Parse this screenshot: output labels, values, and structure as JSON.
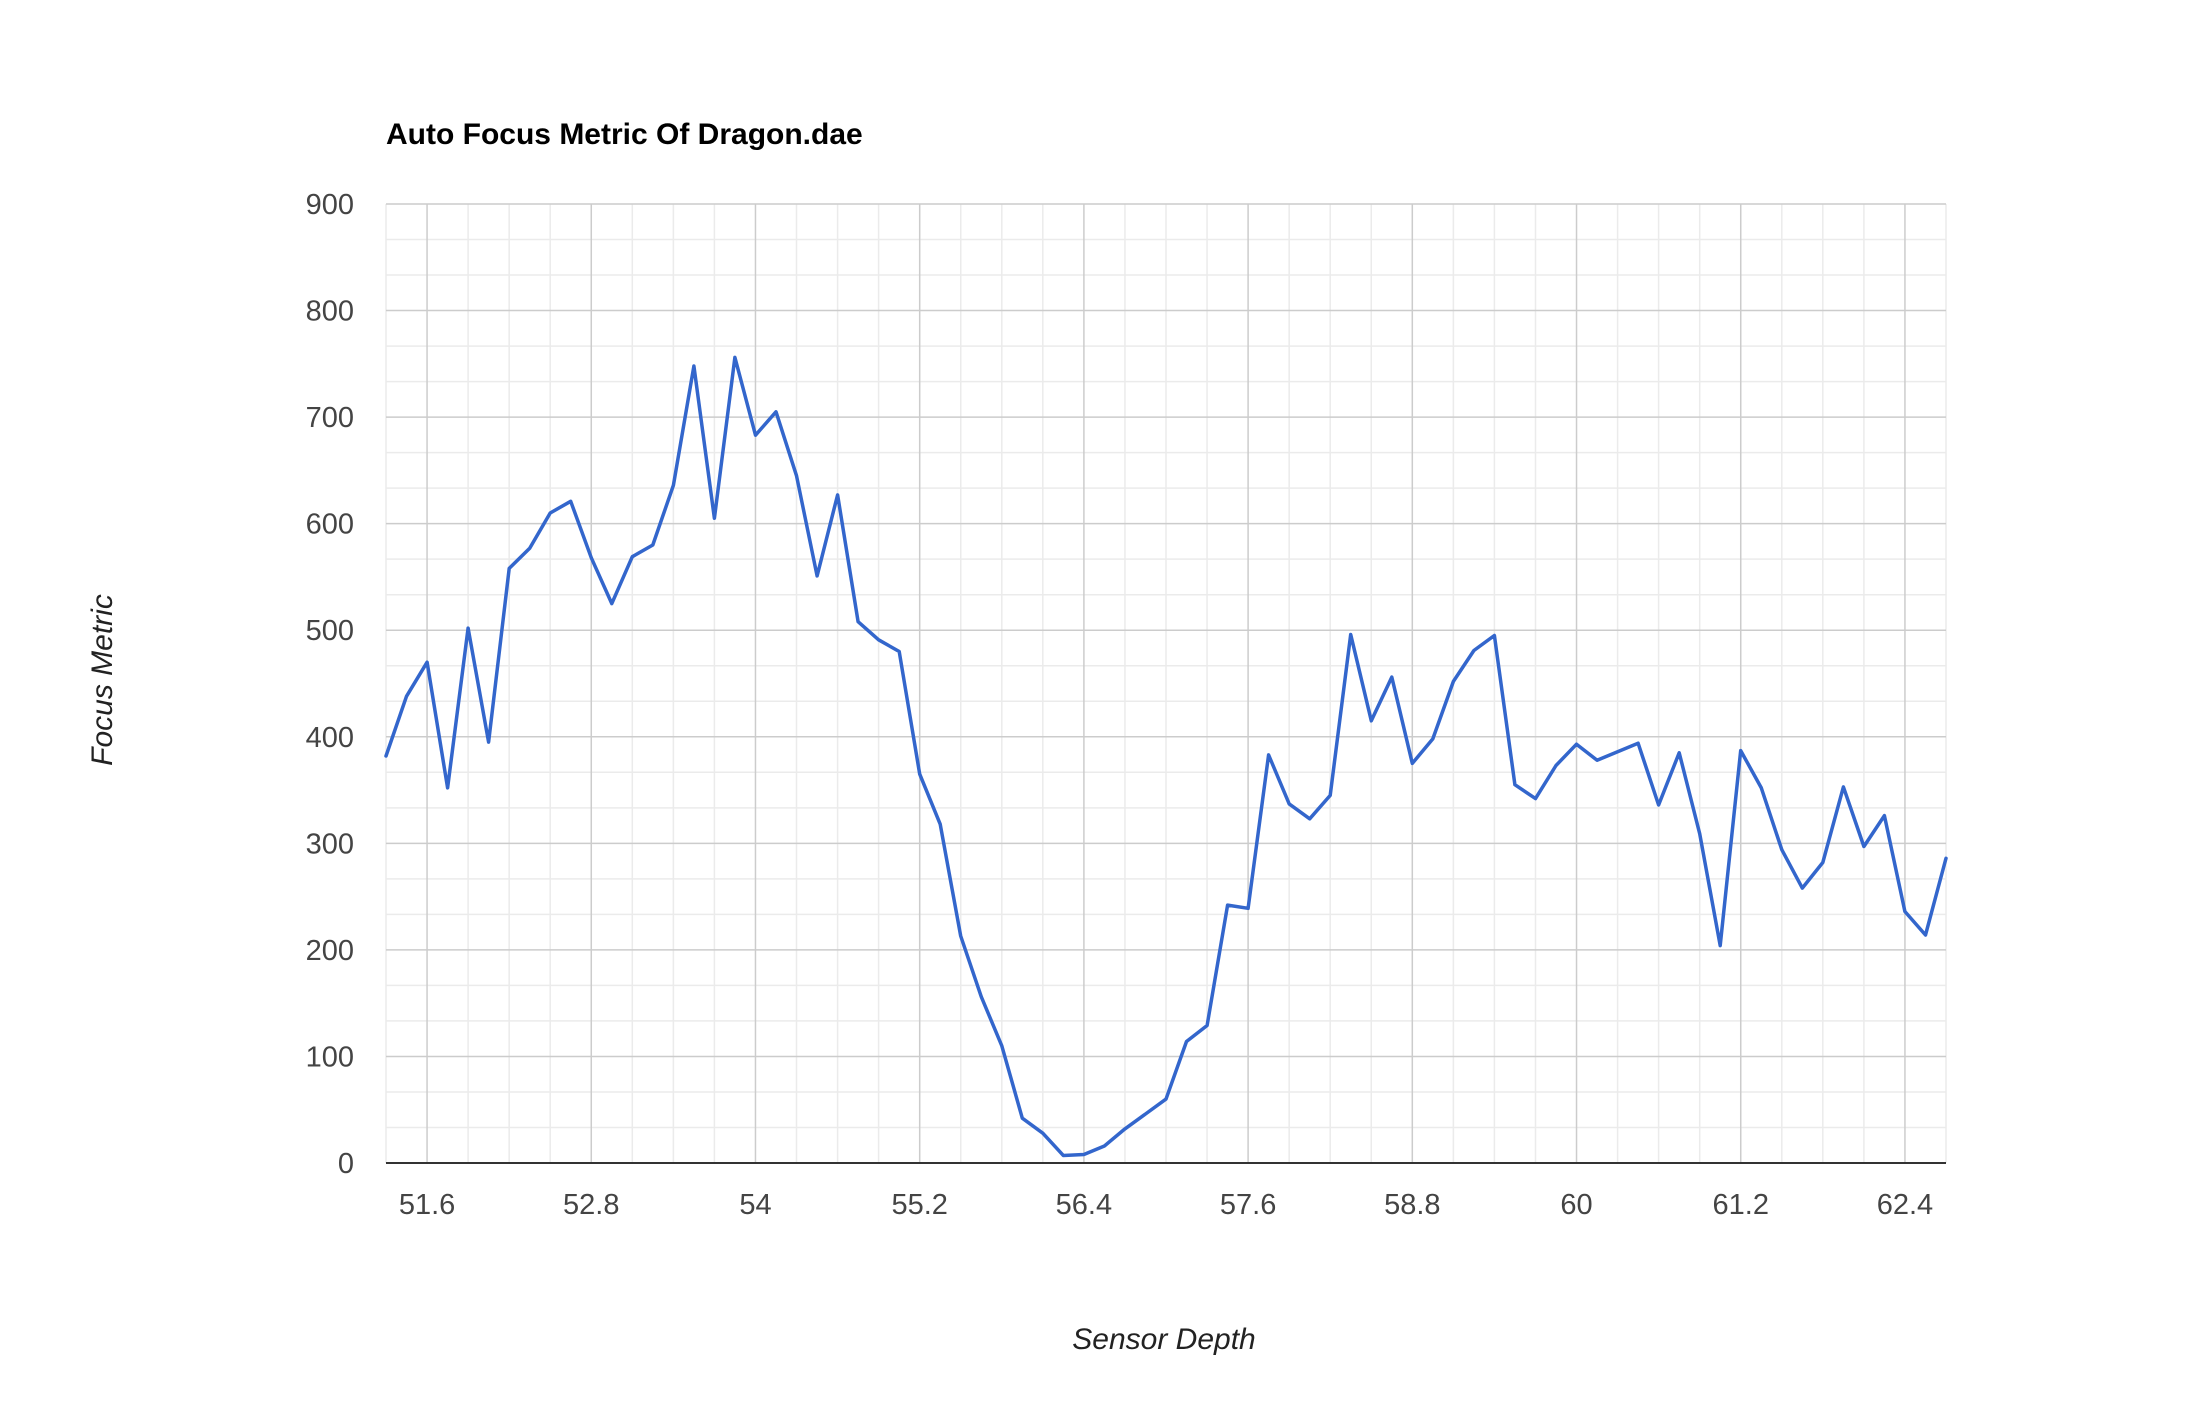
{
  "chart_data": {
    "type": "line",
    "title": "Auto Focus Metric Of Dragon.dae",
    "xlabel": "Sensor Depth",
    "ylabel": "Focus Metric",
    "xlim": [
      51.3,
      62.7
    ],
    "ylim": [
      0,
      900
    ],
    "x_ticks": [
      "51.6",
      "52.8",
      "54",
      "55.2",
      "56.4",
      "57.6",
      "58.8",
      "60",
      "61.2",
      "62.4"
    ],
    "y_ticks": [
      "0",
      "100",
      "200",
      "300",
      "400",
      "500",
      "600",
      "700",
      "800",
      "900"
    ],
    "grid": true,
    "legend": "none",
    "line_color": "#3366cc",
    "series": [
      {
        "x": [
          51.3,
          51.45,
          51.6,
          51.75,
          51.9,
          52.05,
          52.2,
          52.35,
          52.5,
          52.65,
          52.8,
          52.95,
          53.1,
          53.25,
          53.4,
          53.55,
          53.7,
          53.85,
          54.0,
          54.15,
          54.3,
          54.45,
          54.6,
          54.75,
          54.9,
          55.05,
          55.2,
          55.35,
          55.5,
          55.65,
          55.8,
          55.95,
          56.1,
          56.25,
          56.4,
          56.55,
          56.7,
          56.85,
          57.0,
          57.15,
          57.3,
          57.45,
          57.6,
          57.75,
          57.9,
          58.05,
          58.2,
          58.35,
          58.5,
          58.65,
          58.8,
          58.95,
          59.1,
          59.25,
          59.4,
          59.55,
          59.7,
          59.85,
          60.0,
          60.15,
          60.3,
          60.45,
          60.6,
          60.75,
          60.9,
          61.05,
          61.2,
          61.35,
          61.5,
          61.65,
          61.8,
          61.95,
          62.1,
          62.25,
          62.4,
          62.55,
          62.7
        ],
        "values": [
          382,
          438,
          470,
          352,
          502,
          395,
          558,
          577,
          610,
          621,
          568,
          525,
          569,
          580,
          636,
          748,
          605,
          756,
          683,
          705,
          645,
          551,
          627,
          508,
          491,
          480,
          365,
          318,
          213,
          156,
          110,
          42,
          28,
          7,
          8,
          16,
          32,
          46,
          60,
          114,
          129,
          242,
          239,
          383,
          337,
          323,
          345,
          496,
          415,
          456,
          375,
          398,
          452,
          481,
          495,
          355,
          342,
          373,
          393,
          378,
          386,
          394,
          336,
          385,
          309,
          204,
          387,
          352,
          294,
          258,
          282,
          353,
          297,
          326,
          236,
          214,
          286
        ]
      }
    ]
  }
}
